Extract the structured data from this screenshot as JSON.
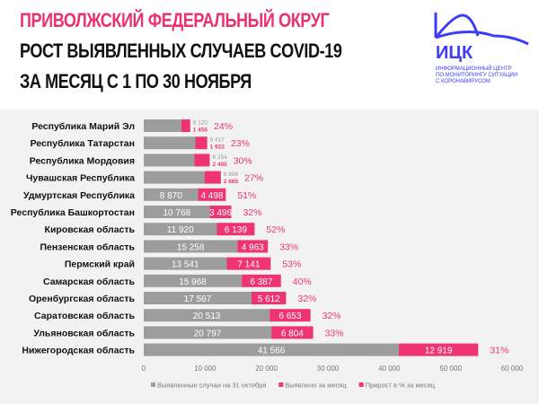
{
  "header": {
    "title1": "ПРИВОЛЖСКИЙ ФЕДЕРАЛЬНЫЙ ОКРУГ",
    "title2": "РОСТ ВЫЯВЛЕННЫХ СЛУЧАЕВ COVID-19",
    "title3": "ЗА МЕСЯЦ С 1 ПО 30 НОЯБРЯ"
  },
  "logo": {
    "name": "ИЦК",
    "subtitle": "ИНФОРМАЦИОННЫЙ ЦЕНТР\nПО МОНИТОРИНГУ СИТУАЦИИ\nС КОРОНАВИРУСОМ"
  },
  "chart_data": {
    "type": "bar",
    "stacked": true,
    "orientation": "horizontal",
    "categories": [
      "Республика Марий Эл",
      "Республика Татарстан",
      "Республика Мордовия",
      "Чувашская Республика",
      "Удмуртская Республика",
      "Республика Башкортостан",
      "Кировская область",
      "Пензенская область",
      "Пермский край",
      "Самарская область",
      "Оренбургская область",
      "Саратовская область",
      "Ульяновская область",
      "Нижегородская область"
    ],
    "series": [
      {
        "name": "Выявленные случаи на 31 октября",
        "color": "#9d9d9d",
        "values": [
          6120,
          8417,
          8254,
          9898,
          8870,
          10768,
          11920,
          15258,
          13541,
          15968,
          17567,
          20513,
          20797,
          41566
        ]
      },
      {
        "name": "Выявлено за месяц",
        "color": "#ee3572",
        "values": [
          1456,
          1922,
          2495,
          2665,
          4498,
          3496,
          6139,
          4963,
          7141,
          6387,
          5612,
          6653,
          6804,
          12919
        ]
      },
      {
        "name": "Прирост в % за месяц",
        "color": "#ee3572",
        "values": [
          "24%",
          "23%",
          "30%",
          "27%",
          "51%",
          "32%",
          "52%",
          "33%",
          "53%",
          "40%",
          "32%",
          "32%",
          "33%",
          "31%"
        ]
      }
    ],
    "xlim": [
      0,
      60000
    ],
    "xticks": [
      "0",
      "10 000",
      "20 000",
      "30 000",
      "40 000",
      "50 000",
      "60 000"
    ],
    "legend": "bottom"
  }
}
